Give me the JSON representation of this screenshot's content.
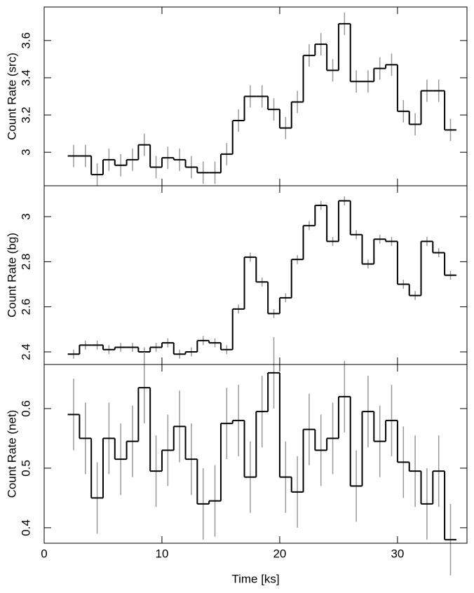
{
  "chart_data": [
    {
      "type": "histogram",
      "ylabel": "Count Rate (src)",
      "bins": [
        2,
        3,
        4,
        5,
        6,
        7,
        8,
        9,
        10,
        11,
        12,
        13,
        14,
        15,
        16,
        17,
        18,
        19,
        20,
        21,
        22,
        23,
        24,
        25,
        26,
        27,
        28,
        29,
        30,
        31,
        32,
        33,
        34,
        35
      ],
      "values": [
        2.98,
        2.98,
        2.88,
        2.96,
        2.93,
        2.96,
        3.04,
        2.92,
        2.97,
        2.96,
        2.92,
        2.89,
        2.89,
        2.99,
        3.17,
        3.3,
        3.3,
        3.23,
        3.13,
        3.27,
        3.52,
        3.58,
        3.44,
        3.69,
        3.38,
        3.38,
        3.45,
        3.47,
        3.22,
        3.15,
        3.33,
        3.33,
        3.12
      ],
      "errors": [
        0.06,
        0.06,
        0.06,
        0.06,
        0.06,
        0.06,
        0.06,
        0.06,
        0.06,
        0.06,
        0.06,
        0.06,
        0.06,
        0.06,
        0.06,
        0.06,
        0.06,
        0.06,
        0.06,
        0.06,
        0.06,
        0.06,
        0.06,
        0.06,
        0.06,
        0.06,
        0.06,
        0.06,
        0.06,
        0.06,
        0.06,
        0.06,
        0.06
      ],
      "color": "#000000",
      "error_color": "#999999",
      "xlim": [
        0,
        35.9
      ],
      "xticks": [
        0,
        10,
        20,
        30
      ],
      "ylim": [
        2.82,
        3.78
      ],
      "yticks": [
        3,
        3.2,
        3.4,
        3.6
      ]
    },
    {
      "type": "histogram",
      "ylabel": "Count Rate (bg)",
      "bins": [
        2,
        3,
        4,
        5,
        6,
        7,
        8,
        9,
        10,
        11,
        12,
        13,
        14,
        15,
        16,
        17,
        18,
        19,
        20,
        21,
        22,
        23,
        24,
        25,
        26,
        27,
        28,
        29,
        30,
        31,
        32,
        33,
        34,
        35
      ],
      "values": [
        2.39,
        2.43,
        2.43,
        2.41,
        2.42,
        2.42,
        2.4,
        2.42,
        2.44,
        2.39,
        2.4,
        2.45,
        2.44,
        2.41,
        2.59,
        2.82,
        2.71,
        2.57,
        2.64,
        2.81,
        2.96,
        3.05,
        2.89,
        3.07,
        2.92,
        2.79,
        2.9,
        2.89,
        2.7,
        2.65,
        2.89,
        2.84,
        2.74
      ],
      "errors": [
        0.02,
        0.02,
        0.02,
        0.02,
        0.02,
        0.02,
        0.02,
        0.02,
        0.02,
        0.02,
        0.02,
        0.02,
        0.02,
        0.02,
        0.02,
        0.02,
        0.02,
        0.02,
        0.02,
        0.02,
        0.02,
        0.02,
        0.02,
        0.02,
        0.02,
        0.02,
        0.02,
        0.02,
        0.02,
        0.02,
        0.02,
        0.02,
        0.02
      ],
      "color": "#000000",
      "error_color": "#999999",
      "xlim": [
        0,
        35.9
      ],
      "xticks": [
        0,
        10,
        20,
        30
      ],
      "ylim": [
        2.344,
        3.137
      ],
      "yticks": [
        2.4,
        2.6,
        2.8,
        3
      ]
    },
    {
      "type": "histogram",
      "ylabel": "Count Rate (net)",
      "xlabel": "Time [ks]",
      "bins": [
        2,
        3,
        4,
        5,
        6,
        7,
        8,
        9,
        10,
        11,
        12,
        13,
        14,
        15,
        16,
        17,
        18,
        19,
        20,
        21,
        22,
        23,
        24,
        25,
        26,
        27,
        28,
        29,
        30,
        31,
        32,
        33,
        34,
        35
      ],
      "values": [
        0.59,
        0.55,
        0.45,
        0.55,
        0.515,
        0.545,
        0.635,
        0.495,
        0.53,
        0.57,
        0.515,
        0.44,
        0.445,
        0.575,
        0.58,
        0.485,
        0.595,
        0.66,
        0.485,
        0.46,
        0.565,
        0.53,
        0.55,
        0.62,
        0.47,
        0.595,
        0.545,
        0.58,
        0.51,
        0.495,
        0.44,
        0.495,
        0.38
      ],
      "errors": [
        0.06,
        0.06,
        0.06,
        0.06,
        0.06,
        0.06,
        0.06,
        0.06,
        0.06,
        0.06,
        0.06,
        0.06,
        0.06,
        0.06,
        0.06,
        0.06,
        0.06,
        0.06,
        0.06,
        0.06,
        0.06,
        0.06,
        0.06,
        0.06,
        0.06,
        0.06,
        0.06,
        0.06,
        0.06,
        0.06,
        0.06,
        0.06,
        0.06
      ],
      "color": "#000000",
      "error_color": "#999999",
      "xlim": [
        0,
        35.9
      ],
      "xticks": [
        0,
        10,
        20,
        30
      ],
      "ylim": [
        0.374,
        0.674
      ],
      "yticks": [
        0.4,
        0.5,
        0.6
      ]
    }
  ]
}
